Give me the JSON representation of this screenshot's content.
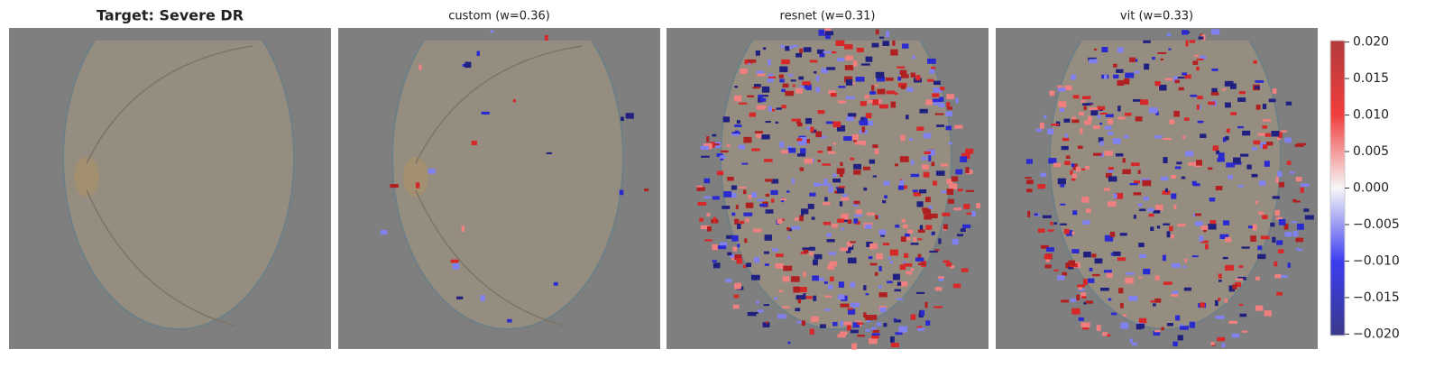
{
  "chart_data": {
    "type": "attribution-grid",
    "panels": [
      {
        "title": "Target: Severe DR"
      },
      {
        "title": "custom (w=0.36)"
      },
      {
        "title": "resnet (w=0.31)"
      },
      {
        "title": "vit (w=0.33)"
      }
    ],
    "colorbar": {
      "ylim": [
        -0.0202,
        0.0202
      ],
      "yticks": [
        {
          "value": -0.02,
          "label": "−0.020"
        },
        {
          "value": -0.015,
          "label": "−0.015"
        },
        {
          "value": -0.01,
          "label": "−0.010"
        },
        {
          "value": -0.005,
          "label": "−0.005"
        },
        {
          "value": 0,
          "label": "0.000"
        },
        {
          "value": 0.005,
          "label": "0.005"
        },
        {
          "value": 0.01,
          "label": "0.010"
        },
        {
          "value": 0.015,
          "label": "0.015"
        },
        {
          "value": 0.02,
          "label": "0.020"
        }
      ]
    }
  }
}
